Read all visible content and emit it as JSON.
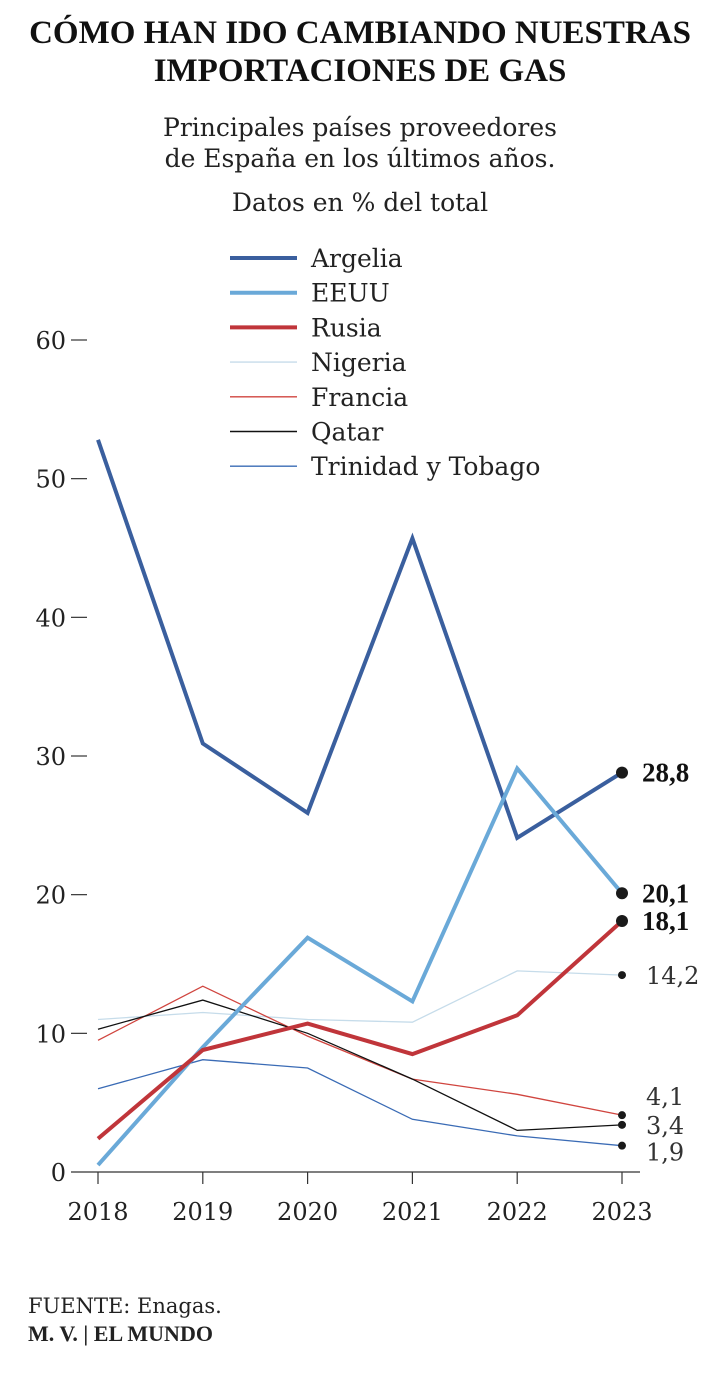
{
  "header": {
    "title_line1": "CÓMO HAN IDO CAMBIANDO NUESTRAS",
    "title_line2": "IMPORTACIONES DE GAS",
    "subtitle_line1": "Principales países proveedores",
    "subtitle_line2": "de España en los últimos años.",
    "units": "Datos en % del total"
  },
  "footer": {
    "source": "FUENTE: Enagas.",
    "credit": "M. V. | EL MUNDO"
  },
  "chart_data": {
    "type": "line",
    "title": "CÓMO HAN IDO CAMBIANDO NUESTRAS IMPORTACIONES DE GAS",
    "subtitle": "Principales países proveedores de España en los últimos años.",
    "ylabel": "Datos en % del total",
    "x": [
      "2018",
      "2019",
      "2020",
      "2021",
      "2022",
      "2023"
    ],
    "ylim": [
      0,
      60
    ],
    "yticks": [
      "0",
      "10",
      "20",
      "30",
      "40",
      "50",
      "60"
    ],
    "grid": false,
    "legend_position": "top",
    "series": [
      {
        "name": "Argelia",
        "color": "#3a5f9e",
        "weight": "thick",
        "values": [
          52.8,
          30.9,
          25.9,
          45.7,
          24.1,
          28.8
        ],
        "end_label": "28,8",
        "end_label_bold": true
      },
      {
        "name": "EEUU",
        "color": "#6aa9d8",
        "weight": "thick",
        "values": [
          0.5,
          9.0,
          16.9,
          12.3,
          29.1,
          20.1
        ],
        "end_label": "20,1",
        "end_label_bold": true
      },
      {
        "name": "Rusia",
        "color": "#c0353a",
        "weight": "thick",
        "values": [
          2.4,
          8.8,
          10.7,
          8.5,
          11.3,
          18.1
        ],
        "end_label": "18,1",
        "end_label_bold": true
      },
      {
        "name": "Nigeria",
        "color": "#c6dcea",
        "weight": "thin",
        "values": [
          11.0,
          11.5,
          11.0,
          10.8,
          14.5,
          14.2
        ],
        "end_label": "14,2",
        "end_label_bold": false
      },
      {
        "name": "Francia",
        "color": "#d0453f",
        "weight": "thin",
        "values": [
          9.5,
          13.4,
          9.8,
          6.7,
          5.6,
          4.1
        ],
        "end_label": "4,1",
        "end_label_bold": false
      },
      {
        "name": "Qatar",
        "color": "#111111",
        "weight": "thin",
        "values": [
          10.3,
          12.4,
          10.0,
          6.7,
          3.0,
          3.4
        ],
        "end_label": "3,4",
        "end_label_bold": false
      },
      {
        "name": "Trinidad y Tobago",
        "color": "#3a6bb5",
        "weight": "thin",
        "values": [
          6.0,
          8.1,
          7.5,
          3.8,
          2.6,
          1.9
        ],
        "end_label": "1,9",
        "end_label_bold": false
      }
    ]
  }
}
